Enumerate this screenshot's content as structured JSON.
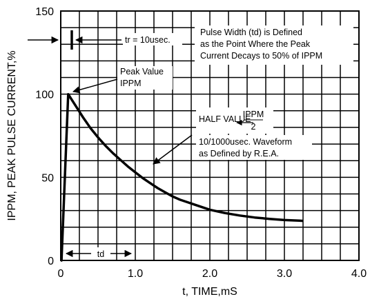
{
  "chart_data": {
    "type": "line",
    "title": "",
    "xlabel": "t, TIME,mS",
    "ylabel": "IPPM, PEAK PULSE CURRENT,%",
    "xlim": [
      0,
      4.0
    ],
    "ylim": [
      0,
      150
    ],
    "x_ticks": [
      "0",
      "1.0",
      "2.0",
      "3.0",
      "4.0"
    ],
    "y_ticks": [
      "0",
      "50",
      "100",
      "150"
    ],
    "grid": true,
    "series": [
      {
        "x": [
          0,
          0.01,
          0.1,
          0.2,
          0.3,
          0.4,
          0.5,
          0.6,
          0.7,
          0.8,
          0.9,
          1.0,
          1.1,
          1.2,
          1.3,
          1.4,
          1.5,
          1.6,
          1.7,
          1.8,
          1.9,
          2.0,
          2.2,
          2.4,
          2.6,
          2.8,
          3.0,
          3.2,
          3.25
        ],
        "y": [
          0,
          0,
          100,
          93,
          86,
          79.5,
          74,
          69,
          64.5,
          60.5,
          56.5,
          53,
          49.5,
          46.5,
          43.5,
          41,
          38.5,
          36.5,
          35,
          33.5,
          32,
          30.5,
          28.5,
          27,
          25.8,
          25,
          24.3,
          23.9,
          23.8
        ]
      }
    ],
    "annotations": {
      "rise_label": "tr = 10usec.",
      "pulse_width_lines": [
        "Pulse Width (td) is Defined",
        "as the Point Where the Peak",
        "Current Decays to 50% of IPPM"
      ],
      "peak_lines": [
        "Peak Value",
        "IPPM"
      ],
      "half_value_label": "HALF VALUE",
      "half_value_numerator": "IPPM",
      "half_value_denominator": "2",
      "waveform_lines": [
        "10/1000usec. Waveform",
        "as Defined by R.E.A."
      ],
      "td_label": "td"
    }
  }
}
